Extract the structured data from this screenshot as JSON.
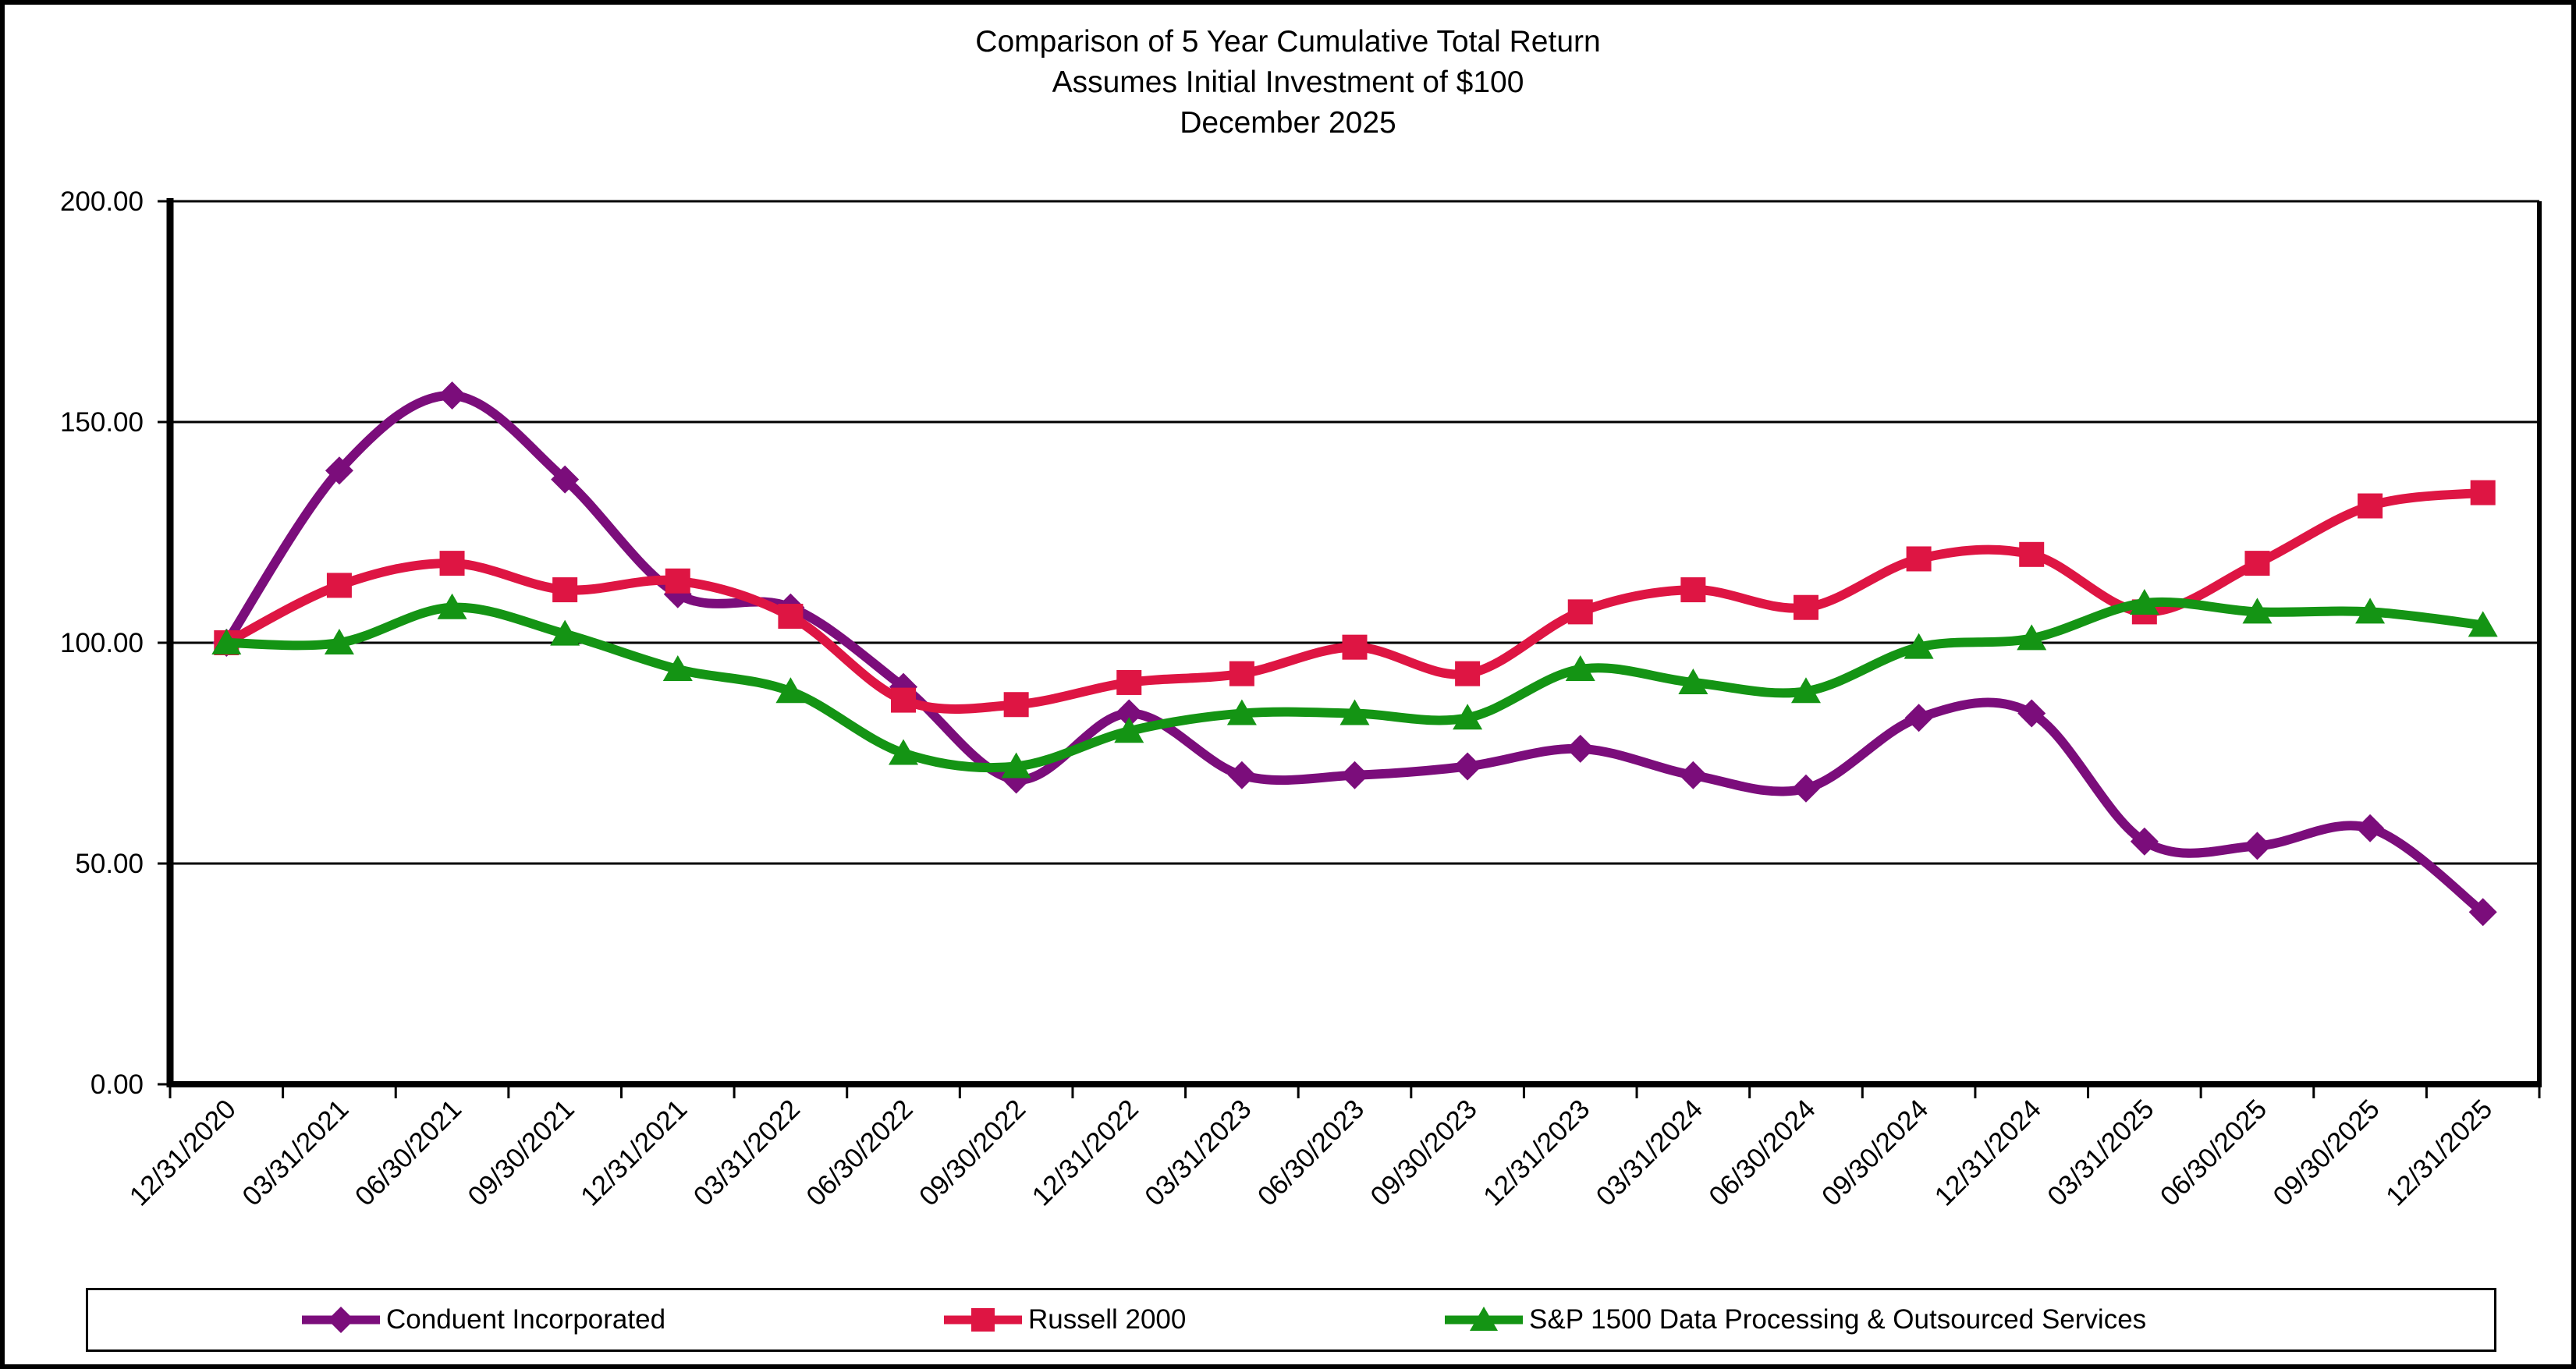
{
  "header": {
    "lines": [
      "Comparison of 5 Year Cumulative Total Return",
      "Assumes Initial Investment of $100",
      "December 2025"
    ]
  },
  "chart_data": {
    "type": "line",
    "title": "Comparison of 5 Year Cumulative Total Return",
    "subtitle": "Assumes Initial Investment of $100",
    "period_label": "December 2025",
    "smoothed_lines": true,
    "grid": true,
    "legend_position": "bottom",
    "categories": [
      "12/31/2020",
      "03/31/2021",
      "06/30/2021",
      "09/30/2021",
      "12/31/2021",
      "03/31/2022",
      "06/30/2022",
      "09/30/2022",
      "12/31/2022",
      "03/31/2023",
      "06/30/2023",
      "09/30/2023",
      "12/31/2023",
      "03/31/2024",
      "06/30/2024",
      "09/30/2024",
      "12/31/2024",
      "03/31/2025",
      "06/30/2025",
      "09/30/2025",
      "12/31/2025"
    ],
    "series": [
      {
        "name": "Conduent Incorporated",
        "color": "#7B0D7B",
        "marker": "diamond",
        "values": [
          100,
          139,
          156,
          137,
          111,
          108,
          90,
          69,
          84,
          70,
          70,
          72,
          76,
          70,
          67,
          83,
          84,
          55,
          54,
          58,
          39
        ]
      },
      {
        "name": "Russell 2000",
        "color": "#DE1543",
        "marker": "square",
        "values": [
          100,
          113,
          118,
          112,
          114,
          106,
          87,
          86,
          91,
          93,
          99,
          93,
          107,
          112,
          108,
          119,
          120,
          107,
          118,
          131,
          134
        ]
      },
      {
        "name": "S&P 1500 Data Processing & Outsourced Services",
        "color": "#149414",
        "marker": "triangle",
        "values": [
          100,
          100,
          108,
          102,
          94,
          89,
          75,
          72,
          80,
          84,
          84,
          83,
          94,
          91,
          89,
          99,
          101,
          109,
          107,
          107,
          104
        ]
      }
    ],
    "y_axis": {
      "min": 0,
      "max": 200,
      "step": 50,
      "tick_labels": [
        "0.00",
        "50.00",
        "100.00",
        "150.00",
        "200.00"
      ]
    },
    "x_axis": {
      "label_rotation": -45
    }
  }
}
